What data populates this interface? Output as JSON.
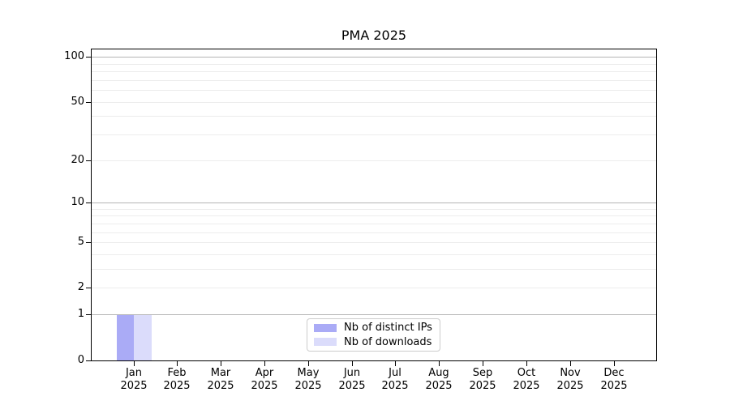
{
  "chart_data": {
    "type": "bar",
    "title": "PMA 2025",
    "categories": [
      "Jan",
      "Feb",
      "Mar",
      "Apr",
      "May",
      "Jun",
      "Jul",
      "Aug",
      "Sep",
      "Oct",
      "Nov",
      "Dec"
    ],
    "category_sublabel": "2025",
    "series": [
      {
        "name": "Nb of distinct IPs",
        "color": "#aaabf6",
        "values": [
          1,
          0,
          0,
          0,
          0,
          0,
          0,
          0,
          0,
          0,
          0,
          0
        ]
      },
      {
        "name": "Nb of downloads",
        "color": "#dbdcfb",
        "values": [
          1,
          0,
          0,
          0,
          0,
          0,
          0,
          0,
          0,
          0,
          0,
          0
        ]
      }
    ],
    "yscale": "log1p",
    "ylim": [
      0,
      113
    ],
    "y_tick_labels": [
      0,
      1,
      2,
      5,
      10,
      20,
      50,
      100
    ],
    "y_major_gridlines": [
      1,
      10,
      100
    ],
    "y_minor_gridlines": [
      2,
      3,
      4,
      5,
      6,
      7,
      8,
      9,
      20,
      30,
      40,
      50,
      60,
      70,
      80,
      90
    ],
    "grid": true,
    "legend_position": "lower center",
    "colors": {
      "axis": "#000000",
      "major_grid": "#b5b5b5",
      "minor_grid": "#ececec",
      "background": "#ffffff",
      "legend_border": "#cccccc"
    }
  }
}
